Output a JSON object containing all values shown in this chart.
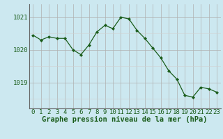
{
  "x": [
    0,
    1,
    2,
    3,
    4,
    5,
    6,
    7,
    8,
    9,
    10,
    11,
    12,
    13,
    14,
    15,
    16,
    17,
    18,
    19,
    20,
    21,
    22,
    23
  ],
  "y": [
    1020.45,
    1020.3,
    1020.4,
    1020.35,
    1020.35,
    1020.0,
    1019.85,
    1020.15,
    1020.55,
    1020.75,
    1020.65,
    1021.0,
    1020.95,
    1020.6,
    1020.35,
    1020.05,
    1019.75,
    1019.35,
    1019.1,
    1018.6,
    1018.55,
    1018.85,
    1018.8,
    1018.7
  ],
  "xlabel": "Graphe pression niveau de la mer (hPa)",
  "yticks": [
    1019,
    1020,
    1021
  ],
  "ylim": [
    1018.2,
    1021.4
  ],
  "xlim": [
    -0.5,
    23.5
  ],
  "bg_color": "#cce8f0",
  "grid_color_major": "#b0b0b0",
  "grid_color_minor": "#d0d0d0",
  "line_color": "#1a5c1a",
  "tick_fontsize": 6.5,
  "xlabel_fontsize": 7.5
}
